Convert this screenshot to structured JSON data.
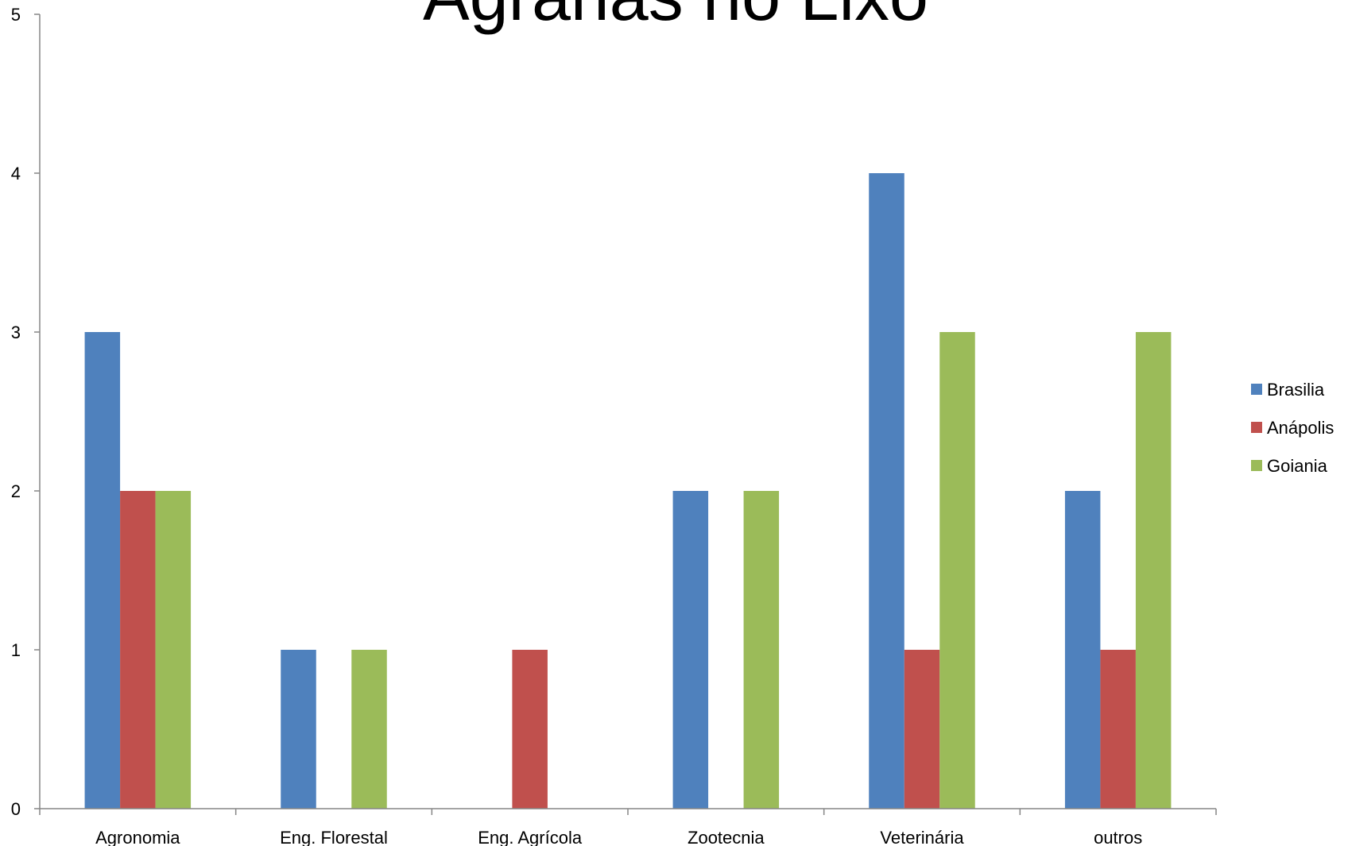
{
  "chart_data": {
    "type": "bar",
    "title": "Agrárias no Lixo",
    "xlabel": "",
    "ylabel": "",
    "ylim": [
      0,
      5
    ],
    "yticks": [
      0,
      1,
      2,
      3,
      4,
      5
    ],
    "grid": false,
    "legend_position": "right",
    "categories": [
      "Agronomia",
      "Eng. Florestal",
      "Eng. Agrícola",
      "Zootecnia",
      "Veterinária",
      "outros"
    ],
    "series": [
      {
        "name": "Brasilia",
        "color": "#4F81BD",
        "values": [
          3,
          1,
          0,
          2,
          4,
          2
        ]
      },
      {
        "name": "Anápolis",
        "color": "#C0504D",
        "values": [
          2,
          0,
          1,
          0,
          1,
          1
        ]
      },
      {
        "name": "Goiania",
        "color": "#9BBB59",
        "values": [
          2,
          1,
          0,
          2,
          3,
          3
        ]
      }
    ]
  }
}
